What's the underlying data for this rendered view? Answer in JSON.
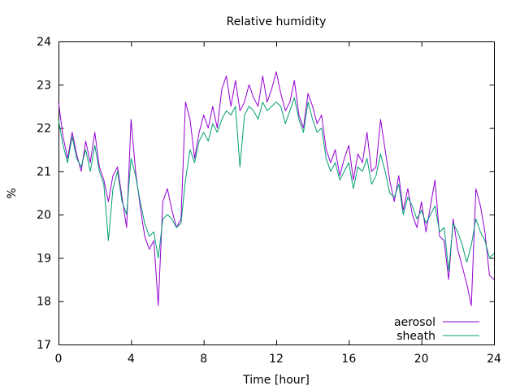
{
  "chart_data": {
    "type": "line",
    "title": "Relative humidity",
    "xlabel": "Time [hour]",
    "ylabel": "%",
    "xlim": [
      0,
      24
    ],
    "ylim": [
      17,
      24
    ],
    "xticks": [
      0,
      4,
      8,
      12,
      16,
      20,
      24
    ],
    "yticks": [
      17,
      18,
      19,
      20,
      21,
      22,
      23,
      24
    ],
    "grid": false,
    "legend_position": "bottom-right",
    "series": [
      {
        "name": "aerosol",
        "color": "#9400d3",
        "x": [
          0,
          0.25,
          0.5,
          0.75,
          1,
          1.25,
          1.5,
          1.75,
          2,
          2.25,
          2.5,
          2.75,
          3,
          3.25,
          3.5,
          3.75,
          4,
          4.25,
          4.5,
          4.75,
          5,
          5.25,
          5.5,
          5.75,
          6,
          6.25,
          6.5,
          6.75,
          7,
          7.25,
          7.5,
          7.75,
          8,
          8.25,
          8.5,
          8.75,
          9,
          9.25,
          9.5,
          9.75,
          10,
          10.25,
          10.5,
          10.75,
          11,
          11.25,
          11.5,
          11.75,
          12,
          12.25,
          12.5,
          12.75,
          13,
          13.25,
          13.5,
          13.75,
          14,
          14.25,
          14.5,
          14.75,
          15,
          15.25,
          15.5,
          15.75,
          16,
          16.25,
          16.5,
          16.75,
          17,
          17.25,
          17.5,
          17.75,
          18,
          18.25,
          18.5,
          18.75,
          19,
          19.25,
          19.5,
          19.75,
          20,
          20.25,
          20.5,
          20.75,
          21,
          21.25,
          21.5,
          21.75,
          22,
          22.25,
          22.5,
          22.75,
          23,
          23.25,
          23.5,
          23.75,
          24
        ],
        "y": [
          22.6,
          21.8,
          21.3,
          21.9,
          21.4,
          21.0,
          21.7,
          21.2,
          21.9,
          21.1,
          20.8,
          20.3,
          20.9,
          21.1,
          20.4,
          19.7,
          22.2,
          21.0,
          20.2,
          19.5,
          19.2,
          19.4,
          17.9,
          20.3,
          20.6,
          20.1,
          19.7,
          19.9,
          22.6,
          22.2,
          21.3,
          21.9,
          22.3,
          22.0,
          22.5,
          22.0,
          22.9,
          23.2,
          22.5,
          23.1,
          22.4,
          22.6,
          23.0,
          22.7,
          22.5,
          23.2,
          22.6,
          22.9,
          23.3,
          22.8,
          22.4,
          22.6,
          23.1,
          22.3,
          22.0,
          22.8,
          22.5,
          22.1,
          22.3,
          21.5,
          21.2,
          21.5,
          20.9,
          21.3,
          21.6,
          20.8,
          21.4,
          21.2,
          21.9,
          21.0,
          21.1,
          22.2,
          21.5,
          20.8,
          20.3,
          20.9,
          20.1,
          20.6,
          20.0,
          19.7,
          20.3,
          19.6,
          20.2,
          20.8,
          19.5,
          19.4,
          18.5,
          19.9,
          19.2,
          18.8,
          18.4,
          17.9,
          20.6,
          20.2,
          19.6,
          18.6,
          18.5
        ]
      },
      {
        "name": "sheath",
        "color": "#009e73",
        "x": [
          0,
          0.25,
          0.5,
          0.75,
          1,
          1.25,
          1.5,
          1.75,
          2,
          2.25,
          2.5,
          2.75,
          3,
          3.25,
          3.5,
          3.75,
          4,
          4.25,
          4.5,
          4.75,
          5,
          5.25,
          5.5,
          5.75,
          6,
          6.25,
          6.5,
          6.75,
          7,
          7.25,
          7.5,
          7.75,
          8,
          8.25,
          8.5,
          8.75,
          9,
          9.25,
          9.5,
          9.75,
          10,
          10.25,
          10.5,
          10.75,
          11,
          11.25,
          11.5,
          11.75,
          12,
          12.25,
          12.5,
          12.75,
          13,
          13.25,
          13.5,
          13.75,
          14,
          14.25,
          14.5,
          14.75,
          15,
          15.25,
          15.5,
          15.75,
          16,
          16.25,
          16.5,
          16.75,
          17,
          17.25,
          17.5,
          17.75,
          18,
          18.25,
          18.5,
          18.75,
          19,
          19.25,
          19.5,
          19.75,
          20,
          20.25,
          20.5,
          20.75,
          21,
          21.25,
          21.5,
          21.75,
          22,
          22.25,
          22.5,
          22.75,
          23,
          23.25,
          23.5,
          23.75,
          24
        ],
        "y": [
          22.2,
          21.6,
          21.2,
          21.8,
          21.3,
          21.1,
          21.5,
          21.0,
          21.6,
          21.0,
          20.7,
          19.4,
          20.6,
          21.0,
          20.3,
          20.0,
          21.3,
          20.9,
          20.3,
          19.8,
          19.5,
          19.6,
          19.0,
          19.9,
          20.0,
          19.9,
          19.7,
          19.8,
          20.8,
          21.5,
          21.2,
          21.7,
          21.9,
          21.7,
          22.1,
          21.9,
          22.2,
          22.4,
          22.3,
          22.5,
          21.1,
          22.3,
          22.5,
          22.4,
          22.2,
          22.6,
          22.4,
          22.5,
          22.6,
          22.5,
          22.1,
          22.4,
          22.7,
          22.2,
          21.9,
          22.6,
          22.2,
          21.9,
          22.0,
          21.3,
          21.0,
          21.2,
          20.8,
          21.0,
          21.2,
          20.6,
          21.1,
          21.0,
          21.3,
          20.7,
          20.9,
          21.4,
          21.0,
          20.5,
          20.4,
          20.7,
          20.0,
          20.4,
          20.2,
          19.9,
          20.1,
          19.8,
          20.0,
          20.2,
          19.6,
          19.7,
          18.7,
          19.8,
          19.6,
          19.3,
          18.9,
          19.3,
          19.9,
          19.6,
          19.4,
          19.0,
          19.1
        ]
      }
    ]
  }
}
